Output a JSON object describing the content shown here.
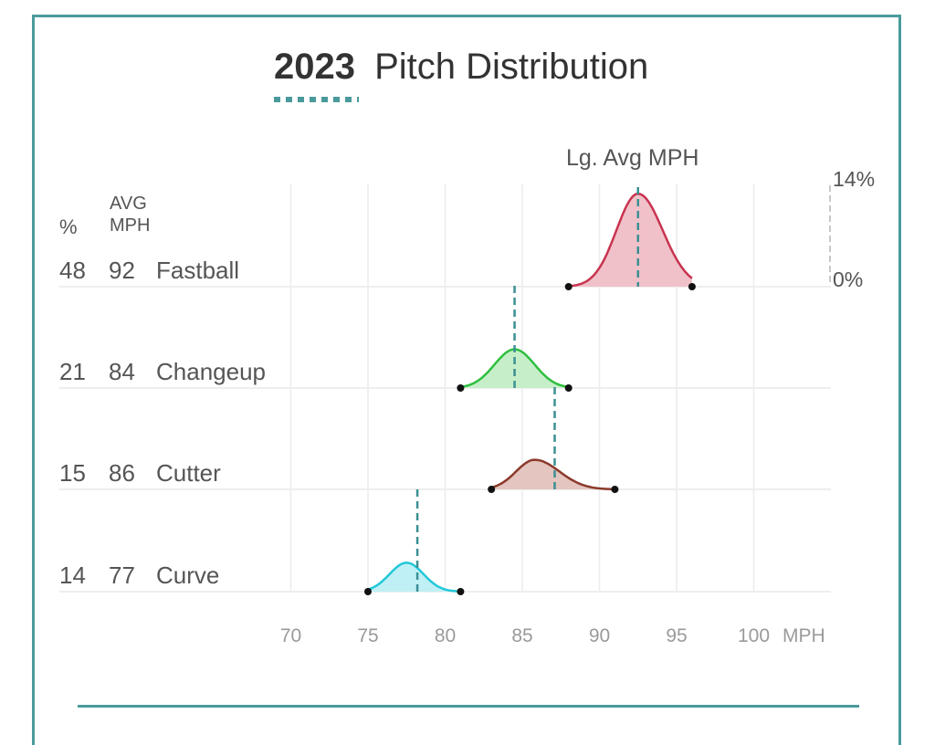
{
  "chart_data": {
    "type": "density-ridgeline",
    "title": {
      "year": "2023",
      "rest": "Pitch Distribution"
    },
    "header": {
      "pct": "%",
      "avg_line1": "AVG",
      "avg_line2": "MPH"
    },
    "lg_avg_label": "Lg. Avg MPH",
    "scale": {
      "max_label": "14%",
      "min_label": "0%",
      "max_value": 14
    },
    "x_unit": "MPH",
    "xlim": [
      65,
      105
    ],
    "x_ticks": [
      70,
      75,
      80,
      85,
      90,
      95,
      100
    ],
    "pitches": [
      {
        "pct": "48",
        "avg": "92",
        "name": "Fastball",
        "color": "#c8344f",
        "fill": "#f0c1c9",
        "min": 88,
        "max": 96,
        "peak_mph": 92.5,
        "peak_density": 13.2,
        "sd_left": 1.4,
        "sd_right": 1.6,
        "lg_avg": 92.5
      },
      {
        "pct": "21",
        "avg": "84",
        "name": "Changeup",
        "color": "#2fbf3f",
        "fill": "#c6efc9",
        "min": 81,
        "max": 88,
        "peak_mph": 84.5,
        "peak_density": 5.5,
        "sd_left": 1.3,
        "sd_right": 1.3,
        "lg_avg": 84.5
      },
      {
        "pct": "15",
        "avg": "86",
        "name": "Cutter",
        "color": "#8b3a2b",
        "fill": "#e4c5bf",
        "min": 83,
        "max": 91,
        "peak_mph": 85.8,
        "peak_density": 4.2,
        "sd_left": 1.2,
        "sd_right": 1.6,
        "lg_avg": 87.1
      },
      {
        "pct": "14",
        "avg": "77",
        "name": "Curve",
        "color": "#22c8d8",
        "fill": "#bff0f5",
        "min": 75,
        "max": 81,
        "peak_mph": 77.5,
        "peak_density": 4.1,
        "sd_left": 1.1,
        "sd_right": 1.1,
        "lg_avg": 78.2
      }
    ]
  }
}
